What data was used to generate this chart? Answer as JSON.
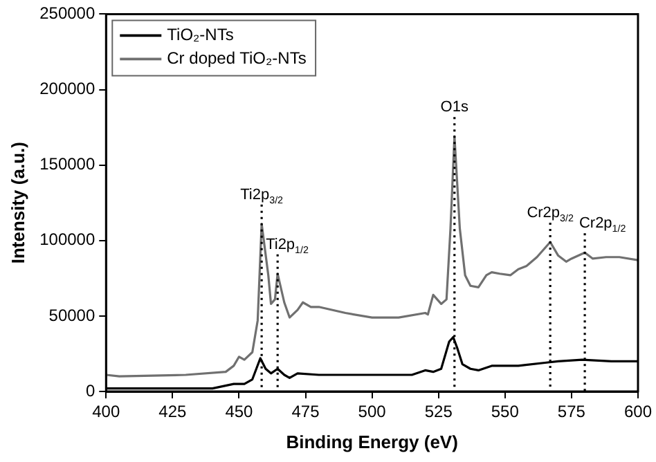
{
  "chart_data": {
    "type": "line",
    "xlabel": "Binding Energy (eV)",
    "ylabel": "Intensity (a.u.)",
    "xlim": [
      400,
      600
    ],
    "xticks": [
      400,
      425,
      450,
      475,
      500,
      525,
      550,
      575,
      600
    ],
    "ylim": [
      0,
      250000
    ],
    "yticks": [
      0,
      50000,
      100000,
      150000,
      200000,
      250000
    ],
    "grid": false,
    "legend": "top left",
    "marker": "none",
    "line_style": "solid",
    "series": [
      {
        "name": "TiO₂-NTs",
        "color": "#000000",
        "x": [
          400,
          440,
          448,
          452,
          455,
          458,
          460,
          462,
          464.5,
          467,
          469,
          472,
          480,
          490,
          500,
          515,
          520,
          523,
          526,
          529,
          530.5,
          532,
          534,
          537,
          540,
          545,
          555,
          565,
          570,
          579,
          590,
          600
        ],
        "values": [
          2000,
          2000,
          5000,
          5000,
          8000,
          22000,
          15000,
          12000,
          15000,
          11000,
          9000,
          12000,
          11000,
          11000,
          11000,
          11000,
          14000,
          13000,
          15000,
          33000,
          36000,
          29000,
          18000,
          15000,
          14000,
          17000,
          17000,
          19000,
          20000,
          21000,
          20000,
          20000
        ]
      },
      {
        "name": "Cr doped TiO₂-NTs",
        "color": "#707070",
        "x": [
          400,
          405,
          430,
          445,
          448,
          450,
          452,
          455,
          457,
          458.5,
          461,
          462,
          463.5,
          464.5,
          467,
          469,
          472,
          474,
          477,
          480,
          490,
          500,
          510,
          520,
          521,
          523,
          526,
          528,
          529.5,
          531,
          533,
          535,
          537,
          540,
          543,
          545,
          548,
          552,
          555,
          558,
          562,
          567,
          570,
          573,
          575,
          580,
          583,
          588,
          593,
          600
        ],
        "values": [
          11000,
          10000,
          11000,
          13000,
          17000,
          23000,
          21000,
          26000,
          47000,
          111000,
          77000,
          58000,
          61000,
          78000,
          59000,
          49000,
          54000,
          59000,
          56000,
          56000,
          52000,
          49000,
          49000,
          52000,
          51000,
          64000,
          58000,
          61000,
          108000,
          169000,
          108000,
          77000,
          70000,
          69000,
          77000,
          79000,
          78000,
          77000,
          81000,
          83000,
          89000,
          99000,
          90000,
          86000,
          88000,
          92000,
          88000,
          89000,
          89000,
          87000
        ]
      }
    ],
    "ref_lines": [
      {
        "axis": "x",
        "value": 458.5,
        "label": "Ti2p$_{3/2}$",
        "line_style": "dotted",
        "color": "#000000"
      },
      {
        "axis": "x",
        "value": 464.5,
        "label": "Ti2p$_{1/2}$",
        "line_style": "dotted",
        "color": "#000000"
      },
      {
        "axis": "x",
        "value": 531,
        "label": "O1s",
        "line_style": "dotted",
        "color": "#000000"
      },
      {
        "axis": "x",
        "value": 567,
        "label": "Cr2p$_{3/2}$",
        "line_style": "dotted",
        "color": "#000000"
      },
      {
        "axis": "x",
        "value": 580,
        "label": "Cr2p$_{1/2}$",
        "line_style": "dotted",
        "color": "#000000"
      }
    ]
  }
}
